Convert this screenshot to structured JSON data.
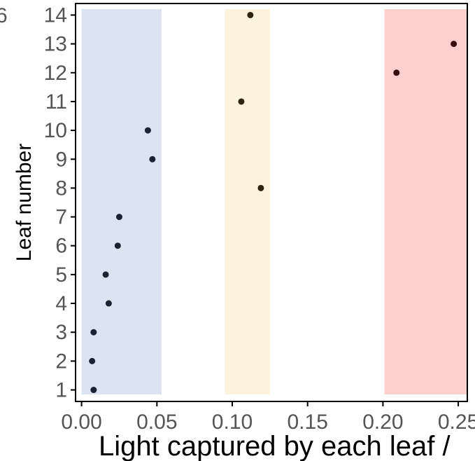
{
  "chart_data": {
    "type": "scatter",
    "xlabel": "Light captured by each leaf /",
    "ylabel": "Leaf number",
    "xlim": [
      -0.004,
      0.256
    ],
    "ylim": [
      0.6,
      14.4
    ],
    "x_ticks": [
      "0.00",
      "0.05",
      "0.10",
      "0.15",
      "0.20",
      "0.25"
    ],
    "y_ticks": [
      "1",
      "2",
      "3",
      "4",
      "5",
      "6",
      "7",
      "8",
      "9",
      "10",
      "11",
      "12",
      "13",
      "14"
    ],
    "grid": false,
    "bands": [
      {
        "x_start": 0.0,
        "x_end": 0.053,
        "color": "#dce4f2"
      },
      {
        "x_start": 0.095,
        "x_end": 0.125,
        "color": "#fdf2dc"
      },
      {
        "x_start": 0.201,
        "x_end": 0.256,
        "color": "#fdcfcf"
      }
    ],
    "points": [
      {
        "leaf": 1,
        "x": 0.008,
        "color": "#1a2333"
      },
      {
        "leaf": 2,
        "x": 0.007,
        "color": "#1a2333"
      },
      {
        "leaf": 3,
        "x": 0.008,
        "color": "#1a2333"
      },
      {
        "leaf": 4,
        "x": 0.018,
        "color": "#1a2333"
      },
      {
        "leaf": 5,
        "x": 0.016,
        "color": "#1a2333"
      },
      {
        "leaf": 6,
        "x": 0.024,
        "color": "#1a2333"
      },
      {
        "leaf": 7,
        "x": 0.025,
        "color": "#1a2333"
      },
      {
        "leaf": 8,
        "x": 0.119,
        "color": "#2d2410"
      },
      {
        "leaf": 9,
        "x": 0.047,
        "color": "#1a2333"
      },
      {
        "leaf": 10,
        "x": 0.044,
        "color": "#1a2333"
      },
      {
        "leaf": 11,
        "x": 0.106,
        "color": "#2d2410"
      },
      {
        "leaf": 12,
        "x": 0.209,
        "color": "#3a0d0d"
      },
      {
        "leaf": 13,
        "x": 0.247,
        "color": "#3a0d0d"
      },
      {
        "leaf": 14,
        "x": 0.112,
        "color": "#2d2410"
      }
    ]
  }
}
